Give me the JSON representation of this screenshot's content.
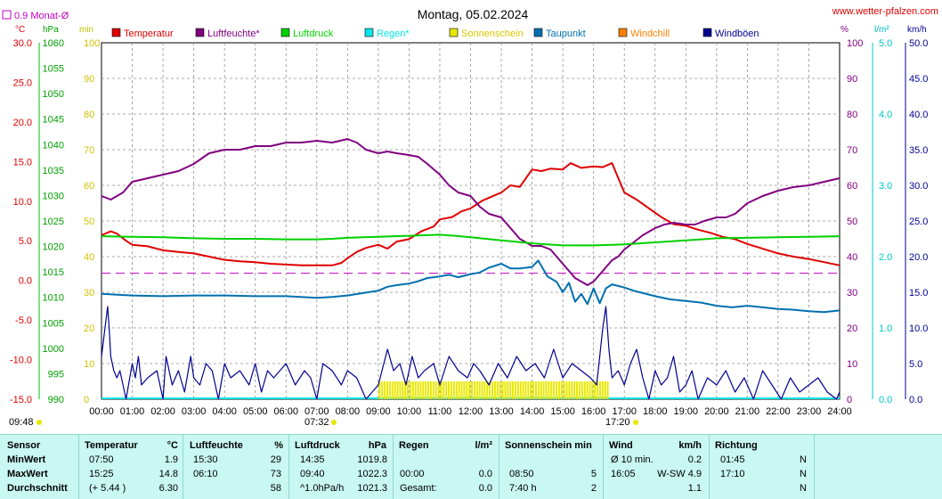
{
  "title": "Montag, 05.02.2024",
  "site": "www.wetter-pfalzen.com",
  "month_avg": "0.9 Monat-Ø",
  "units": {
    "temp": "°C",
    "press": "hPa",
    "min": "min",
    "pct": "%",
    "rain": "l/m²",
    "wind": "km/h"
  },
  "legend": [
    {
      "name": "Temperatur",
      "color": "#e00000"
    },
    {
      "name": "Luftfeuchte*",
      "color": "#800080"
    },
    {
      "name": "Luftdruck",
      "color": "#00d000"
    },
    {
      "name": "Regen*",
      "color": "#00e5e5"
    },
    {
      "name": "Sonnenschein",
      "color": "#e8e800"
    },
    {
      "name": "Taupunkt",
      "color": "#0070b0"
    },
    {
      "name": "Windchill",
      "color": "#ff8000"
    },
    {
      "name": "Windböen",
      "color": "#000090"
    }
  ],
  "sunrise": "07:32",
  "sunset": "17:20",
  "time_start_label": "09:48",
  "chart_data": {
    "type": "line",
    "x_ticks": [
      "00:00",
      "01:00",
      "02:00",
      "03:00",
      "04:00",
      "05:00",
      "06:00",
      "07:00",
      "08:00",
      "09:00",
      "10:00",
      "11:00",
      "12:00",
      "13:00",
      "14:00",
      "15:00",
      "16:00",
      "17:00",
      "18:00",
      "19:00",
      "20:00",
      "21:00",
      "22:00",
      "23:00",
      "24:00"
    ],
    "axes": {
      "temp": {
        "ticks": [
          "30.0",
          "25.0",
          "20.0",
          "15.0",
          "10.0",
          "5.0",
          "0.0",
          "-5.0",
          "-10.0",
          "-15.0"
        ],
        "ylim": [
          -15,
          30
        ]
      },
      "press": {
        "ticks": [
          "1060",
          "1055",
          "1050",
          "1045",
          "1040",
          "1035",
          "1030",
          "1025",
          "1020",
          "1015",
          "1010",
          "1005",
          "1000",
          "995",
          "990"
        ],
        "ylim": [
          990,
          1060
        ]
      },
      "min": {
        "ticks": [
          "100",
          "90",
          "80",
          "70",
          "60",
          "50",
          "40",
          "30",
          "20",
          "10",
          "0"
        ],
        "ylim": [
          0,
          100
        ]
      },
      "pct": {
        "ticks": [
          "100",
          "90",
          "80",
          "70",
          "60",
          "50",
          "40",
          "30",
          "20",
          "10",
          "0"
        ],
        "ylim": [
          0,
          100
        ]
      },
      "rain": {
        "ticks": [
          "5.0",
          "4.0",
          "3.0",
          "2.0",
          "1.0",
          "0.0"
        ],
        "ylim": [
          0,
          5
        ]
      },
      "wind": {
        "ticks": [
          "50.0",
          "45.0",
          "40.0",
          "35.0",
          "30.0",
          "25.0",
          "20.0",
          "15.0",
          "10.0",
          "5.0",
          "0.0"
        ],
        "ylim": [
          0,
          50
        ]
      }
    },
    "reference_line": {
      "name": "0.9 Monat-Ø",
      "value": 0.9
    },
    "series": [
      {
        "name": "Temperatur",
        "axis": "temp",
        "color": "#e00000",
        "x": [
          0,
          0.3,
          0.5,
          0.8,
          1,
          1.5,
          2,
          2.5,
          3,
          3.5,
          4,
          4.5,
          5,
          5.5,
          6,
          6.5,
          7,
          7.5,
          7.8,
          8,
          8.3,
          8.6,
          9,
          9.3,
          9.6,
          10,
          10.4,
          10.8,
          11,
          11.4,
          11.7,
          12,
          12.4,
          12.7,
          13,
          13.3,
          13.6,
          14,
          14.3,
          14.6,
          15,
          15.25,
          15.6,
          16,
          16.3,
          16.6,
          17,
          17.4,
          17.8,
          18.2,
          18.6,
          19,
          19.4,
          19.8,
          20.2,
          20.6,
          21,
          21.5,
          22,
          22.5,
          23,
          23.5,
          24
        ],
        "y": [
          5.7,
          6.2,
          5.9,
          5.0,
          4.5,
          4.3,
          3.8,
          3.6,
          3.4,
          3.0,
          2.6,
          2.4,
          2.3,
          2.1,
          2.0,
          1.9,
          1.9,
          1.9,
          2.2,
          2.8,
          3.6,
          4.1,
          4.5,
          4.0,
          4.9,
          5.2,
          6.2,
          6.8,
          7.7,
          8.0,
          8.7,
          9.1,
          10.1,
          10.6,
          11.1,
          12.0,
          11.8,
          14.0,
          13.8,
          14.1,
          14.0,
          14.8,
          14.2,
          14.4,
          14.3,
          14.8,
          11.1,
          10.2,
          9.1,
          8.0,
          7.1,
          6.9,
          6.4,
          6.0,
          5.5,
          5.2,
          4.6,
          4.0,
          3.4,
          3.0,
          2.7,
          2.3,
          1.9
        ]
      },
      {
        "name": "Luftfeuchte*",
        "axis": "pct",
        "color": "#800080",
        "x": [
          0,
          0.3,
          0.7,
          1,
          1.5,
          2,
          2.5,
          3,
          3.5,
          4,
          4.5,
          5,
          5.5,
          6,
          6.5,
          7,
          7.5,
          8,
          8.3,
          8.6,
          9,
          9.3,
          9.6,
          10,
          10.3,
          10.6,
          11,
          11.3,
          11.6,
          12,
          12.3,
          12.6,
          13,
          13.3,
          13.6,
          14,
          14.3,
          14.6,
          15,
          15.2,
          15.4,
          15.6,
          15.8,
          16,
          16.2,
          16.4,
          16.6,
          16.8,
          17,
          17.3,
          17.6,
          18,
          18.3,
          18.6,
          19,
          19.3,
          19.6,
          20,
          20.3,
          20.6,
          21,
          21.5,
          22,
          22.5,
          23,
          23.5,
          24
        ],
        "y": [
          57,
          56,
          58,
          61,
          62,
          63,
          64,
          66,
          69,
          70,
          70,
          71,
          71,
          72,
          72,
          72.5,
          72,
          73,
          72,
          70,
          69,
          69.5,
          69,
          68.5,
          68,
          66,
          63,
          60,
          58,
          57,
          54,
          52,
          51,
          48,
          45,
          43,
          43,
          42,
          38,
          36,
          34,
          33,
          32,
          33,
          35,
          37,
          39,
          40,
          42,
          44,
          46,
          48,
          49,
          49.5,
          49,
          49,
          50,
          51,
          51,
          52,
          55,
          57,
          58.5,
          59.5,
          60,
          61,
          62
        ]
      },
      {
        "name": "Luftdruck",
        "axis": "press",
        "color": "#00d000",
        "x": [
          0,
          1,
          2,
          3,
          4,
          5,
          6,
          7,
          7.5,
          8,
          8.5,
          9,
          9.5,
          10,
          10.5,
          11,
          11.5,
          12,
          12.5,
          13,
          13.5,
          14,
          14.5,
          15,
          15.5,
          16,
          16.5,
          17,
          17.5,
          18,
          18.5,
          19,
          19.5,
          20,
          21,
          22,
          23,
          24
        ],
        "y": [
          1022.0,
          1021.9,
          1021.8,
          1021.6,
          1021.5,
          1021.5,
          1021.4,
          1021.4,
          1021.5,
          1021.7,
          1021.8,
          1021.9,
          1022.0,
          1022.1,
          1022.2,
          1022.3,
          1022.1,
          1021.8,
          1021.5,
          1021.2,
          1020.9,
          1020.6,
          1020.4,
          1020.2,
          1020.2,
          1020.2,
          1020.3,
          1020.4,
          1020.6,
          1020.8,
          1021.0,
          1021.2,
          1021.4,
          1021.6,
          1021.7,
          1021.8,
          1021.9,
          1022.0
        ]
      },
      {
        "name": "Taupunkt",
        "axis": "temp",
        "color": "#0070b0",
        "x": [
          0,
          1,
          2,
          3,
          4,
          5,
          6,
          7,
          7.5,
          8,
          8.5,
          9,
          9.3,
          9.6,
          10,
          10.3,
          10.6,
          11,
          11.3,
          11.6,
          12,
          12.3,
          12.6,
          13,
          13.3,
          13.6,
          14,
          14.2,
          14.5,
          14.8,
          15,
          15.2,
          15.4,
          15.6,
          15.8,
          16,
          16.2,
          16.4,
          16.6,
          16.8,
          17,
          17.3,
          17.6,
          18,
          18.5,
          19,
          19.5,
          20,
          20.5,
          21,
          21.5,
          22,
          22.5,
          23,
          23.5,
          24
        ],
        "y": [
          -1.7,
          -1.9,
          -2.0,
          -1.9,
          -1.9,
          -2.0,
          -2.0,
          -2.2,
          -2.1,
          -1.9,
          -1.6,
          -1.3,
          -0.8,
          -0.6,
          -0.4,
          -0.1,
          0.3,
          0.5,
          0.7,
          0.4,
          0.8,
          1.0,
          1.6,
          2.1,
          1.5,
          1.5,
          1.7,
          2.5,
          0.5,
          -0.2,
          -1.5,
          -0.3,
          -2.7,
          -1.7,
          -3.0,
          -1.0,
          -2.9,
          -1.0,
          -0.5,
          -0.7,
          -0.9,
          -1.3,
          -1.6,
          -2.0,
          -2.4,
          -2.6,
          -2.8,
          -3.2,
          -3.4,
          -3.2,
          -3.4,
          -3.6,
          -3.7,
          -3.9,
          -4.0,
          -3.8
        ]
      },
      {
        "name": "Sonnenschein",
        "axis": "min",
        "color": "#e8e800",
        "type": "bar",
        "intervals": [
          [
            9.0,
            16.5,
            5
          ]
        ]
      },
      {
        "name": "Windböen",
        "axis": "wind",
        "color": "#000090",
        "x": [
          0,
          0.2,
          0.25,
          0.3,
          0.4,
          0.5,
          0.6,
          0.8,
          1,
          1.1,
          1.2,
          1.3,
          1.5,
          1.8,
          2,
          2.1,
          2.3,
          2.5,
          2.7,
          2.9,
          3,
          3.2,
          3.4,
          3.6,
          3.8,
          4,
          4.2,
          4.5,
          4.8,
          5,
          5.2,
          5.4,
          5.6,
          6,
          6.3,
          6.6,
          6.8,
          7,
          7.2,
          7.5,
          7.8,
          8,
          8.3,
          8.6,
          9,
          9.3,
          9.5,
          9.7,
          9.9,
          10.1,
          10.3,
          10.5,
          10.8,
          11,
          11.3,
          11.6,
          11.9,
          12.1,
          12.3,
          12.6,
          12.9,
          13.2,
          13.5,
          13.8,
          14.1,
          14.4,
          14.7,
          15,
          15.3,
          15.6,
          15.9,
          16.1,
          16.2,
          16.3,
          16.4,
          16.5,
          16.6,
          16.8,
          17,
          17.2,
          17.4,
          17.6,
          17.8,
          18,
          18.2,
          18.4,
          18.6,
          18.8,
          19,
          19.2,
          19.4,
          19.7,
          20,
          20.3,
          20.6,
          20.9,
          21.2,
          21.5,
          21.8,
          22.1,
          22.4,
          22.7,
          23,
          23.3,
          23.6,
          23.9,
          24
        ],
        "y": [
          6,
          13,
          10,
          6,
          4,
          3,
          4,
          0,
          5,
          3,
          6,
          2,
          3,
          4,
          0,
          6,
          2,
          4,
          1,
          6,
          3,
          2,
          5,
          4,
          0,
          5,
          3,
          4,
          2,
          5,
          1,
          4,
          3,
          5,
          2,
          4,
          3,
          0,
          5,
          4,
          2,
          4,
          3,
          0,
          2,
          7,
          4,
          5,
          2,
          6,
          3,
          4,
          5,
          2,
          6,
          4,
          3,
          5,
          4,
          2,
          5,
          3,
          6,
          4,
          5,
          3,
          7,
          3,
          5,
          4,
          3,
          2,
          6,
          10,
          13,
          7,
          3,
          4,
          2,
          5,
          7,
          3,
          0,
          4,
          2,
          3,
          6,
          1,
          2,
          4,
          0,
          3,
          2,
          4,
          1,
          3,
          0,
          4,
          2,
          0,
          3,
          1,
          2,
          3,
          1,
          0,
          1
        ]
      }
    ]
  },
  "table": {
    "headers": [
      "Sensor",
      "Temperatur",
      "°C",
      "Luftfeuchte",
      "%",
      "Luftdruck",
      "hPa",
      "Regen",
      "l/m²",
      "Sonnenschein min",
      "Wind",
      "km/h",
      "Richtung"
    ],
    "rows": [
      {
        "label": "MinWert",
        "t_time": "07:50",
        "t_val": "1.9",
        "h_time": "15:30",
        "h_val": "29",
        "p_time": "14:35",
        "p_val": "1019.8",
        "r_time": "",
        "r_val": "",
        "s_time": "",
        "s_val": "",
        "w_time": "Ø 10 min.",
        "w_val": "0.2",
        "d_time": "01:45",
        "d_val": "N"
      },
      {
        "label": "MaxWert",
        "t_time": "15:25",
        "t_val": "14.8",
        "h_time": "06:10",
        "h_val": "73",
        "p_time": "09:40",
        "p_val": "1022.3",
        "r_time": "00:00",
        "r_val": "0.0",
        "s_time": "08:50",
        "s_val": "5",
        "w_time": "16:05",
        "w_val": "W-SW 4.9",
        "d_time": "17:10",
        "d_val": "N"
      },
      {
        "label": "Durchschnitt",
        "t_time": "(+ 5.44 )",
        "t_val": "6.30",
        "h_time": "",
        "h_val": "58",
        "p_time": "^1.0hPa/h",
        "p_val": "1021.3",
        "r_time": "Gesamt:",
        "r_val": "0.0",
        "s_time": "7:40 h",
        "s_val": "2",
        "w_time": "",
        "w_val": "1.1",
        "d_time": "",
        "d_val": "N"
      }
    ]
  }
}
